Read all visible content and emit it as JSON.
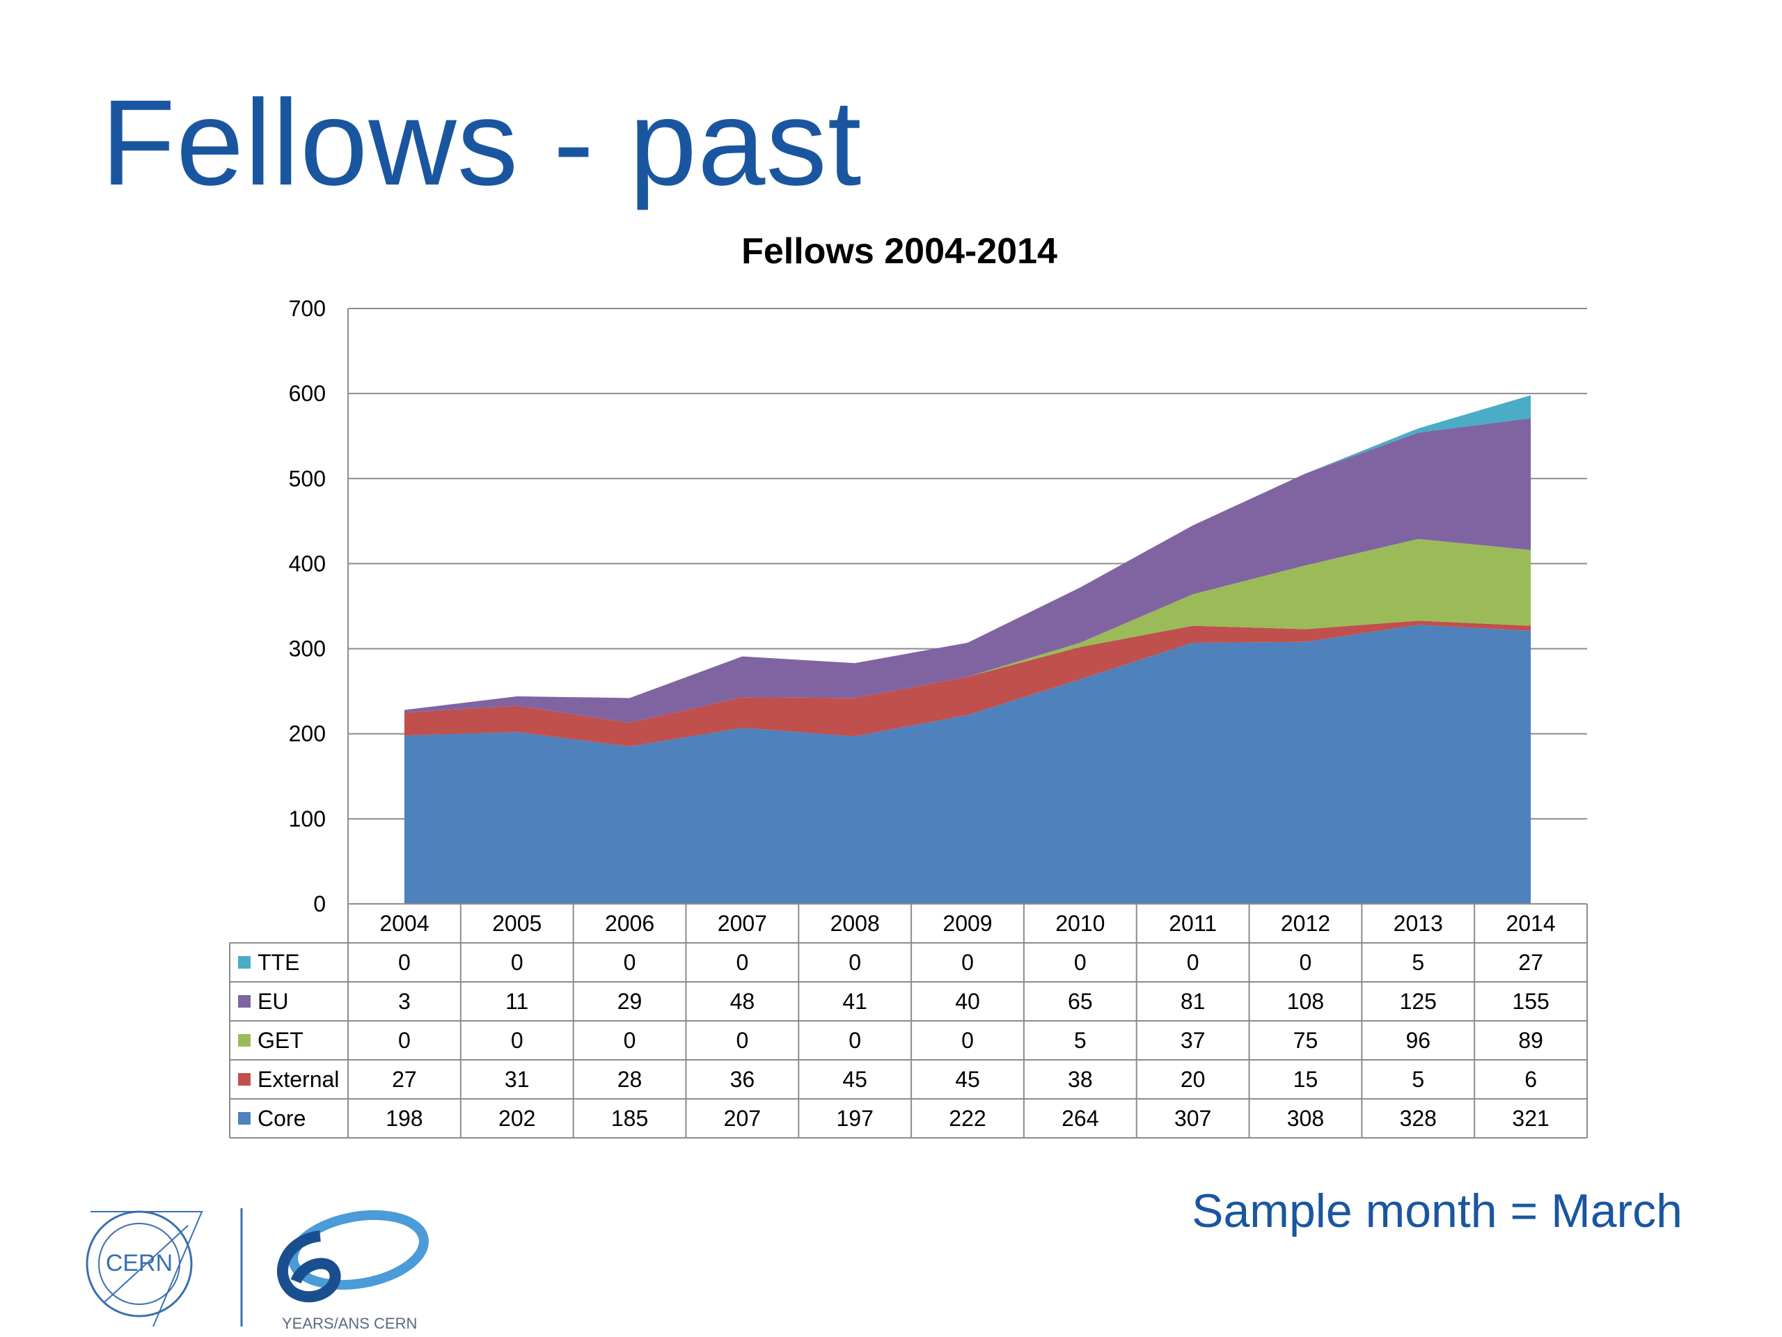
{
  "slide": {
    "title": "Fellows - past",
    "footer_note": "Sample month = March",
    "logo_cern_text": "CERN",
    "logo_60_text": "YEARS/ANS CERN"
  },
  "colors": {
    "title": "#1a56a0",
    "Core": "#4f81bd",
    "External": "#c0504d",
    "GET": "#9bbb59",
    "EU": "#8064a2",
    "TTE": "#4bacc6"
  },
  "chart_data": {
    "type": "area",
    "stacked": true,
    "title": "Fellows 2004-2014",
    "xlabel": "",
    "ylabel": "",
    "ylim": [
      0,
      700
    ],
    "yticks": [
      0,
      100,
      200,
      300,
      400,
      500,
      600,
      700
    ],
    "grid": true,
    "legend": "data-table",
    "categories": [
      "2004",
      "2005",
      "2006",
      "2007",
      "2008",
      "2009",
      "2010",
      "2011",
      "2012",
      "2013",
      "2014"
    ],
    "series": [
      {
        "name": "Core",
        "values": [
          198,
          202,
          185,
          207,
          197,
          222,
          264,
          307,
          308,
          328,
          321
        ]
      },
      {
        "name": "External",
        "values": [
          27,
          31,
          28,
          36,
          45,
          45,
          38,
          20,
          15,
          5,
          6
        ]
      },
      {
        "name": "GET",
        "values": [
          0,
          0,
          0,
          0,
          0,
          0,
          5,
          37,
          75,
          96,
          89
        ]
      },
      {
        "name": "EU",
        "values": [
          3,
          11,
          29,
          48,
          41,
          40,
          65,
          81,
          108,
          125,
          155
        ]
      },
      {
        "name": "TTE",
        "values": [
          0,
          0,
          0,
          0,
          0,
          0,
          0,
          0,
          0,
          5,
          27
        ]
      }
    ],
    "table_row_order": [
      "TTE",
      "EU",
      "GET",
      "External",
      "Core"
    ]
  }
}
